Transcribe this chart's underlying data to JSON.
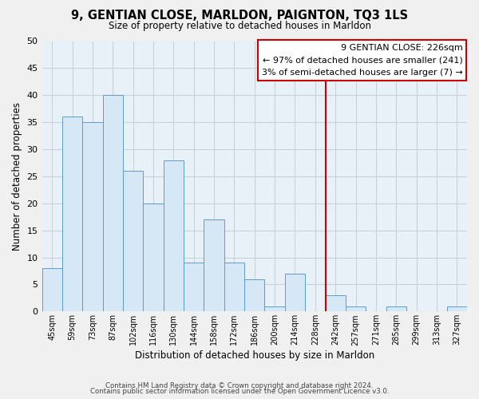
{
  "title": "9, GENTIAN CLOSE, MARLDON, PAIGNTON, TQ3 1LS",
  "subtitle": "Size of property relative to detached houses in Marldon",
  "xlabel": "Distribution of detached houses by size in Marldon",
  "ylabel": "Number of detached properties",
  "categories": [
    "45sqm",
    "59sqm",
    "73sqm",
    "87sqm",
    "102sqm",
    "116sqm",
    "130sqm",
    "144sqm",
    "158sqm",
    "172sqm",
    "186sqm",
    "200sqm",
    "214sqm",
    "228sqm",
    "242sqm",
    "257sqm",
    "271sqm",
    "285sqm",
    "299sqm",
    "313sqm",
    "327sqm"
  ],
  "values": [
    8,
    36,
    35,
    40,
    26,
    20,
    28,
    9,
    17,
    9,
    6,
    1,
    7,
    0,
    3,
    1,
    0,
    1,
    0,
    0,
    1
  ],
  "bar_color": "#d6e8f5",
  "bar_edge_color": "#5b9dc9",
  "vline_x_index": 13,
  "vline_color": "#cc0000",
  "ylim": [
    0,
    50
  ],
  "yticks": [
    0,
    5,
    10,
    15,
    20,
    25,
    30,
    35,
    40,
    45,
    50
  ],
  "annotation_title": "9 GENTIAN CLOSE: 226sqm",
  "annotation_line1": "← 97% of detached houses are smaller (241)",
  "annotation_line2": "3% of semi-detached houses are larger (7) →",
  "footer_line1": "Contains HM Land Registry data © Crown copyright and database right 2024.",
  "footer_line2": "Contains public sector information licensed under the Open Government Licence v3.0.",
  "background_color": "#f0f0f0",
  "plot_bg_color": "#e8f0f8",
  "grid_color": "#c8d0dc"
}
